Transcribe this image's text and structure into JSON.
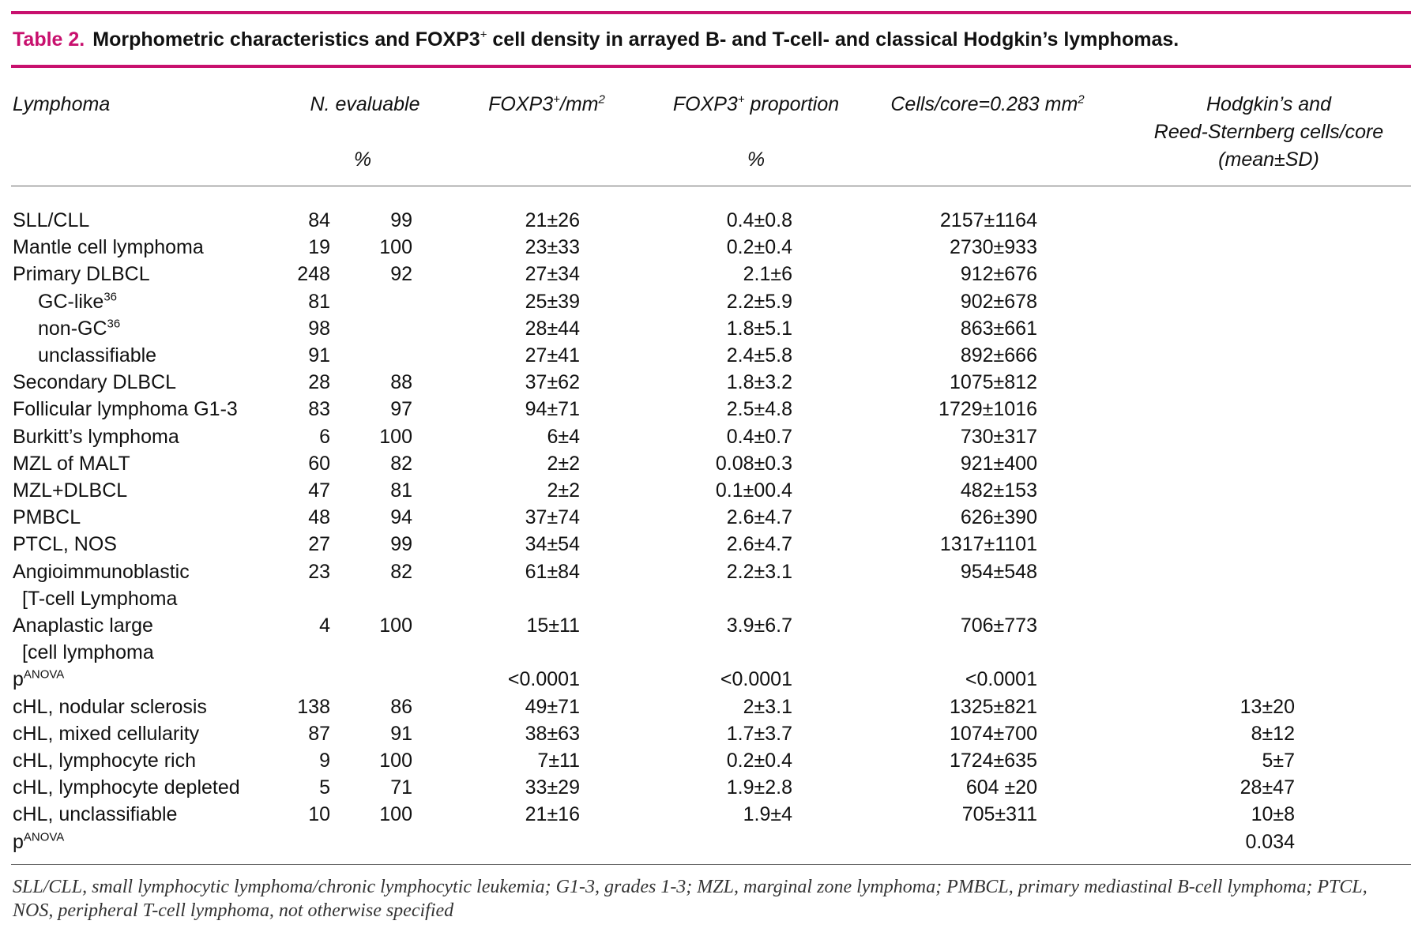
{
  "caption": {
    "number": "Table 2.",
    "title_a": "Morphometric characteristics and FOXP3",
    "title_sup": "+",
    "title_b": " cell density in arrayed B- and T-cell- and classical Hodgkin’s lymphomas."
  },
  "header": {
    "lymphoma": "Lymphoma",
    "n_evaluable": "N. evaluable",
    "n_pct": "%",
    "foxp3_mm2": {
      "a": "FOXP3",
      "sup1": "+",
      "b": "/mm",
      "sup2": "2"
    },
    "foxp3_prop": {
      "a": "FOXP3",
      "sup1": "+",
      "b": " proportion"
    },
    "foxp3_pct": "%",
    "cells_core": {
      "a": "Cells/core=0.283 mm",
      "sup": "2"
    },
    "hrs": [
      "Hodgkin’s and",
      "Reed-Sternberg cells/core",
      "(mean±SD)"
    ]
  },
  "table": {
    "rows": [
      {
        "label": "SLL/CLL",
        "cells": [
          "84",
          "99",
          "21±26",
          "0.4±0.8",
          "2157±1164",
          null
        ]
      },
      {
        "label": "Mantle cell lymphoma",
        "cells": [
          "19",
          "100",
          "23±33",
          "0.2±0.4",
          "2730±933",
          null
        ]
      },
      {
        "label": "Primary DLBCL",
        "cells": [
          "248",
          "92",
          "27±34",
          "2.1±6",
          "912±676",
          null
        ],
        "subrows": [
          {
            "label": "GC-like",
            "label_sup": "36",
            "cells": [
              "81",
              null,
              "25±39",
              "2.2±5.9",
              "902±678",
              null
            ]
          },
          {
            "label": "non-GC",
            "label_sup": "36",
            "cells": [
              "98",
              null,
              "28±44",
              "1.8±5.1",
              "863±661",
              null
            ]
          },
          {
            "label": "unclassifiable",
            "cells": [
              "91",
              null,
              "27±41",
              "2.4±5.8",
              "892±666",
              null
            ]
          }
        ]
      },
      {
        "label": "Secondary DLBCL",
        "cells": [
          "28",
          "88",
          "37±62",
          "1.8±3.2",
          "1075±812",
          null
        ]
      },
      {
        "label": "Follicular lymphoma G1-3",
        "cells": [
          "83",
          "97",
          "94±71",
          "2.5±4.8",
          "1729±1016",
          null
        ]
      },
      {
        "label": "Burkitt’s lymphoma",
        "cells": [
          "6",
          "100",
          "6±4",
          "0.4±0.7",
          "730±317",
          null
        ]
      },
      {
        "label": "MZL of MALT",
        "cells": [
          "60",
          "82",
          "2±2",
          "0.08±0.3",
          "921±400",
          null
        ]
      },
      {
        "label": "MZL+DLBCL",
        "cells": [
          "47",
          "81",
          "2±2",
          "0.1±00.4",
          "482±153",
          null
        ]
      },
      {
        "label": "PMBCL",
        "cells": [
          "48",
          "94",
          "37±74",
          "2.6±4.7",
          "626±390",
          null
        ]
      },
      {
        "label": "PTCL, NOS",
        "cells": [
          "27",
          "99",
          "34±54",
          "2.6±4.7",
          "1317±1101",
          null
        ]
      },
      {
        "label": "Angioimmunoblastic",
        "label_cont": "[T-cell Lymphoma",
        "cells": [
          "23",
          "82",
          "61±84",
          "2.2±3.1",
          "954±548",
          null
        ]
      },
      {
        "label": "Anaplastic large",
        "label_cont": "[cell lymphoma",
        "cells": [
          "4",
          "100",
          "15±11",
          "3.9±6.7",
          "706±773",
          null
        ]
      },
      {
        "label": "p",
        "label_sup": "ANOVA",
        "cells": [
          null,
          null,
          "<0.0001",
          "<0.0001",
          "<0.0001",
          null
        ]
      },
      {
        "label": "cHL, nodular sclerosis",
        "cells": [
          "138",
          "86",
          "49±71",
          "2±3.1",
          "1325±821",
          "13±20"
        ]
      },
      {
        "label": "cHL, mixed cellularity",
        "cells": [
          "87",
          "91",
          "38±63",
          "1.7±3.7",
          "1074±700",
          "8±12"
        ]
      },
      {
        "label": "cHL, lymphocyte rich",
        "cells": [
          "9",
          "100",
          "7±11",
          "0.2±0.4",
          "1724±635",
          "5±7"
        ]
      },
      {
        "label": "cHL, lymphocyte depleted",
        "cells": [
          "5",
          "71",
          "33±29",
          "1.9±2.8",
          "604 ±20",
          "28±47"
        ]
      },
      {
        "label": "cHL, unclassifiable",
        "cells": [
          "10",
          "100",
          "21±16",
          "1.9±4",
          "705±311",
          "10±8"
        ]
      },
      {
        "label": "p",
        "label_sup": "ANOVA",
        "cells": [
          null,
          null,
          null,
          null,
          null,
          "0.034"
        ]
      }
    ]
  },
  "footnote": "SLL/CLL, small lymphocytic lymphoma/chronic lymphocytic leukemia; G1-3, grades 1-3; MZL, marginal zone lymphoma; PMBCL, primary mediastinal B-cell lymphoma; PTCL, NOS, peripheral T-cell lymphoma, not otherwise specified"
}
